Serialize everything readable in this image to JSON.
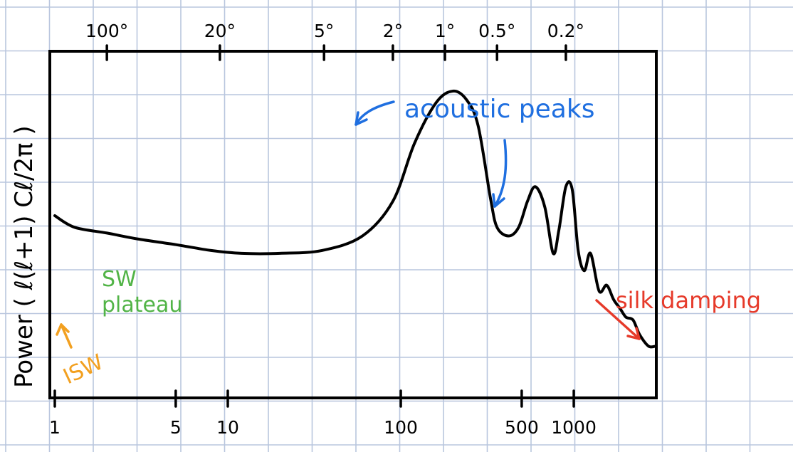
{
  "chart_data": {
    "type": "line",
    "ylabel": "Power ( ℓ(ℓ+1) Cℓ/2π )",
    "xlabel": "",
    "x_scale": "log",
    "xlim": [
      1,
      3000
    ],
    "grid": true,
    "x_ticks_bottom": [
      "1",
      "5",
      "10",
      "100",
      "500",
      "1000"
    ],
    "x_tick_values_bottom": [
      1,
      5,
      10,
      100,
      500,
      1000
    ],
    "x_ticks_top": [
      "100°",
      "20°",
      "5°",
      "2°",
      "1°",
      "0.5°",
      "0.2°"
    ],
    "x_tick_values_top": [
      2,
      9,
      36,
      90,
      180,
      360,
      900
    ],
    "series": [
      {
        "x": [
          1,
          1.3,
          2,
          3,
          5,
          8,
          12,
          20,
          35,
          60,
          90,
          120,
          160,
          200,
          240,
          280,
          330,
          360,
          420,
          480,
          540,
          600,
          680,
          760,
          820,
          900,
          980,
          1060,
          1150,
          1250,
          1400,
          1550,
          1700,
          1850,
          2000,
          2200,
          2400,
          2700,
          3000
        ],
        "y": [
          0.57,
          0.53,
          0.51,
          0.49,
          0.47,
          0.45,
          0.44,
          0.44,
          0.45,
          0.5,
          0.62,
          0.82,
          0.96,
          1.0,
          0.97,
          0.88,
          0.63,
          0.53,
          0.5,
          0.53,
          0.62,
          0.67,
          0.6,
          0.44,
          0.52,
          0.67,
          0.66,
          0.45,
          0.38,
          0.44,
          0.31,
          0.33,
          0.28,
          0.25,
          0.22,
          0.21,
          0.16,
          0.12,
          0.12
        ]
      }
    ],
    "annotations": [
      {
        "text": "acoustic peaks",
        "color": "#1f6fe0"
      },
      {
        "text": "SW plateau",
        "color": "#52b447"
      },
      {
        "text": "ISW",
        "color": "#f2a020"
      },
      {
        "text": "silk damping",
        "color": "#e63a2a"
      }
    ]
  }
}
